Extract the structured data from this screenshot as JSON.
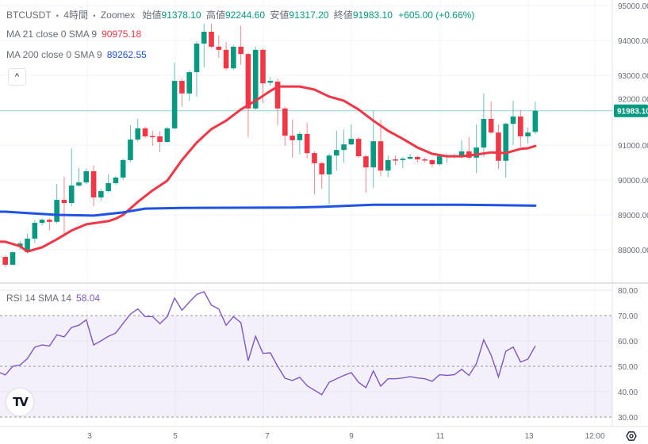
{
  "header": {
    "symbol": "BTCUSDT",
    "sep1": "•",
    "interval": "4時間",
    "sep2": "•",
    "exchange": "Zoomex",
    "open_label": "始値",
    "open": "91378.10",
    "high_label": "高値",
    "high": "92244.60",
    "low_label": "安値",
    "low": "91317.20",
    "close_label": "終値",
    "close": "91983.10",
    "change": "+605.00 (+0.66%)"
  },
  "indicators": {
    "ma21_label": "MA 21 close 0 SMA 9",
    "ma21_value": "90975.18",
    "ma200_label": "MA 200 close 0 SMA 9",
    "ma200_value": "89262.55",
    "rsi_label": "RSI 14 SMA 14",
    "rsi_value": "58.04",
    "collapse_icon": "chevron-up-icon"
  },
  "colors": {
    "up": "#089981",
    "down": "#f23645",
    "ma21": "#f23645",
    "ma200": "#1e53e5",
    "rsi": "#7e57c2",
    "rsi_band": "#7e57c2"
  },
  "price_axis": {
    "labels": [
      "95000.00",
      "94000.00",
      "93000.00",
      "92000.00",
      "91000.00",
      "90000.00",
      "89000.00",
      "88000.00"
    ],
    "current_price": "91983.10"
  },
  "rsi_axis": {
    "labels": [
      "80.00",
      "70.00",
      "60.00",
      "50.00",
      "40.00",
      "30.00"
    ]
  },
  "time_axis": {
    "labels": [
      "3",
      "5",
      "7",
      "9",
      "11",
      "13",
      "12:00"
    ]
  },
  "logo_text": "TV",
  "chart_data": [
    {
      "type": "candlestick",
      "title": "",
      "ylim": [
        87400,
        95000
      ],
      "grid": true,
      "x_tick_labels": [
        "3",
        "5",
        "7",
        "9",
        "11",
        "13",
        "12:00"
      ],
      "y_tick_labels": [
        95000,
        94000,
        93000,
        92000,
        91000,
        90000,
        89000,
        88000
      ],
      "ohlc": [
        [
          87795,
          87840,
          87500,
          87570
        ],
        [
          87570,
          87960,
          87540,
          87930
        ],
        [
          88100,
          88250,
          88000,
          88180
        ],
        [
          87930,
          88460,
          87900,
          88320
        ],
        [
          88320,
          88850,
          88190,
          88770
        ],
        [
          88770,
          88900,
          88700,
          88860
        ],
        [
          88860,
          88900,
          88550,
          88800
        ],
        [
          88800,
          89890,
          88750,
          89430
        ],
        [
          89430,
          90090,
          88410,
          89340
        ],
        [
          89340,
          90910,
          89250,
          89840
        ],
        [
          89840,
          90340,
          89800,
          89930
        ],
        [
          89930,
          90330,
          89880,
          90250
        ],
        [
          90250,
          90410,
          89250,
          89500
        ],
        [
          89500,
          89750,
          89400,
          89680
        ],
        [
          89680,
          90160,
          89640,
          89910
        ],
        [
          89910,
          90110,
          89860,
          90070
        ],
        [
          90070,
          90620,
          90000,
          90570
        ],
        [
          90570,
          91570,
          90520,
          91160
        ],
        [
          91160,
          91750,
          91100,
          91480
        ],
        [
          91480,
          91530,
          91200,
          91250
        ],
        [
          91260,
          91410,
          90980,
          91250
        ],
        [
          91250,
          91390,
          90800,
          91090
        ],
        [
          91090,
          91520,
          91060,
          91480
        ],
        [
          91480,
          93360,
          91450,
          92840
        ],
        [
          92840,
          92900,
          92110,
          92480
        ],
        [
          92480,
          93150,
          92270,
          93090
        ],
        [
          93090,
          93980,
          92390,
          93910
        ],
        [
          93910,
          94480,
          93230,
          94250
        ],
        [
          94250,
          94480,
          93780,
          93820
        ],
        [
          93820,
          94140,
          93500,
          93730
        ],
        [
          93730,
          93960,
          93140,
          93200
        ],
        [
          93200,
          93870,
          93150,
          93820
        ],
        [
          93820,
          94420,
          93300,
          93610
        ],
        [
          93610,
          93660,
          91230,
          92050
        ],
        [
          92050,
          93820,
          92000,
          93730
        ],
        [
          93730,
          93780,
          92200,
          92770
        ],
        [
          92790,
          92950,
          92700,
          92840
        ],
        [
          92820,
          92900,
          91570,
          92050
        ],
        [
          92050,
          92100,
          90980,
          91270
        ],
        [
          91270,
          91730,
          90640,
          91140
        ],
        [
          91140,
          91380,
          90730,
          91320
        ],
        [
          91320,
          91640,
          90610,
          90770
        ],
        [
          90770,
          90820,
          89590,
          90480
        ],
        [
          90480,
          90520,
          89750,
          90160
        ],
        [
          90160,
          90760,
          89300,
          90700
        ],
        [
          90700,
          91410,
          90270,
          90860
        ],
        [
          90860,
          91450,
          90500,
          91020
        ],
        [
          91020,
          91590,
          91000,
          91180
        ],
        [
          91180,
          91230,
          90640,
          90680
        ],
        [
          90680,
          90720,
          89640,
          90360
        ],
        [
          90360,
          91980,
          89770,
          91110
        ],
        [
          91110,
          91730,
          90110,
          90270
        ],
        [
          90270,
          90700,
          90090,
          90570
        ],
        [
          90590,
          90700,
          90430,
          90570
        ],
        [
          90570,
          90660,
          90340,
          90610
        ],
        [
          90610,
          90750,
          90590,
          90660
        ],
        [
          90660,
          90700,
          90500,
          90590
        ],
        [
          90590,
          90640,
          90500,
          90570
        ],
        [
          90570,
          90590,
          90360,
          90450
        ],
        [
          90450,
          90720,
          90410,
          90680
        ],
        [
          90660,
          90750,
          90500,
          90700
        ],
        [
          90660,
          90750,
          90620,
          90690
        ],
        [
          90660,
          91140,
          90620,
          90820
        ],
        [
          90820,
          91230,
          90600,
          90640
        ],
        [
          90640,
          91590,
          90200,
          90930
        ],
        [
          90930,
          92480,
          90660,
          91750
        ],
        [
          91750,
          92250,
          91320,
          91360
        ],
        [
          91360,
          91590,
          90320,
          90550
        ],
        [
          90550,
          91650,
          90070,
          91610
        ],
        [
          91610,
          92270,
          91000,
          91820
        ],
        [
          91820,
          92000,
          90950,
          91250
        ],
        [
          91250,
          91500,
          91050,
          91360
        ],
        [
          91378.1,
          92244.6,
          91317.2,
          91983.1
        ]
      ],
      "series": [
        {
          "name": "MA 21 close 0 SMA 9",
          "points": [
            [
              1,
              88230
            ],
            [
              3,
              88100
            ],
            [
              4,
              87950
            ],
            [
              6,
              88070
            ],
            [
              8,
              88300
            ],
            [
              10,
              88550
            ],
            [
              12,
              88730
            ],
            [
              15,
              88820
            ],
            [
              16,
              88890
            ],
            [
              17,
              89000
            ],
            [
              19,
              89370
            ],
            [
              21,
              89700
            ],
            [
              23,
              89980
            ],
            [
              25,
              90570
            ],
            [
              27,
              91070
            ],
            [
              29,
              91460
            ],
            [
              31,
              91700
            ],
            [
              33,
              92020
            ],
            [
              35,
              92270
            ],
            [
              37,
              92550
            ],
            [
              38,
              92680
            ],
            [
              41,
              92680
            ],
            [
              43,
              92590
            ],
            [
              45,
              92390
            ],
            [
              47,
              92270
            ],
            [
              49,
              92020
            ],
            [
              51,
              91700
            ],
            [
              53,
              91410
            ],
            [
              55,
              91180
            ],
            [
              57,
              90930
            ],
            [
              59,
              90750
            ],
            [
              61,
              90680
            ],
            [
              63,
              90680
            ],
            [
              65,
              90730
            ],
            [
              67,
              90790
            ],
            [
              69,
              90770
            ],
            [
              71,
              90890
            ],
            [
              72,
              90910
            ],
            [
              73,
              90975.18
            ]
          ]
        },
        {
          "name": "MA 200 close 0 SMA 9",
          "points": [
            [
              1,
              89090
            ],
            [
              8,
              89000
            ],
            [
              13,
              88980
            ],
            [
              17,
              89070
            ],
            [
              20,
              89180
            ],
            [
              25,
              89200
            ],
            [
              40,
              89210
            ],
            [
              44,
              89230
            ],
            [
              51,
              89290
            ],
            [
              63,
              89290
            ],
            [
              73,
              89262.55
            ]
          ]
        }
      ]
    },
    {
      "type": "line",
      "title": "RSI 14 SMA 14",
      "ylim": [
        28,
        82
      ],
      "y_tick_labels": [
        80,
        70,
        60,
        50,
        40,
        30
      ],
      "bands": {
        "upper": 70,
        "middle": 50,
        "lower": 30
      },
      "series": [
        {
          "name": "RSI 14 SMA 14",
          "values": [
            46.6,
            50,
            50.5,
            53,
            57.5,
            58.4,
            58,
            62.4,
            61.6,
            65.3,
            66.2,
            68.3,
            58.4,
            60,
            61.8,
            63.1,
            66.9,
            70.6,
            72.6,
            69.6,
            69.6,
            66.8,
            69.6,
            76.9,
            72.1,
            75.3,
            78.3,
            79.4,
            74.1,
            72.6,
            66.2,
            69.6,
            67.2,
            52.2,
            61.8,
            55.1,
            55.3,
            50,
            45.3,
            44.4,
            45.7,
            42.3,
            40.6,
            38.8,
            43.7,
            45.1,
            46.4,
            47.5,
            43.7,
            41.6,
            48.2,
            42.2,
            45.1,
            45.1,
            45.4,
            45.9,
            45.4,
            45.1,
            44.1,
            46.7,
            46.4,
            46.7,
            48.8,
            46.4,
            51,
            60.4,
            54.4,
            45.8,
            55.9,
            57.6,
            51.7,
            52.8,
            58.04
          ]
        }
      ]
    }
  ]
}
